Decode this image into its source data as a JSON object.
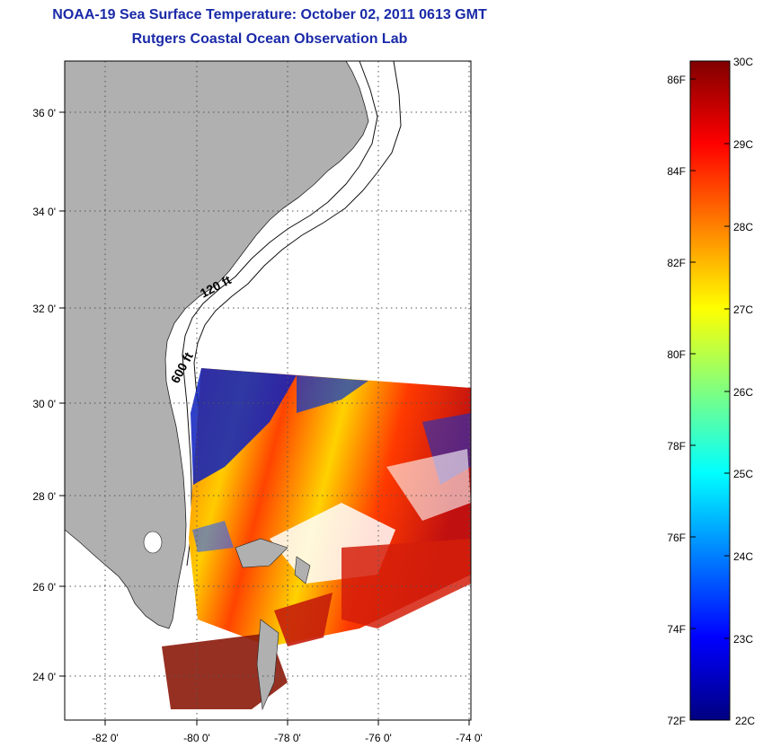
{
  "header": {
    "title": "NOAA-19 Sea Surface Temperature:  October 02, 2011 0613 GMT",
    "subtitle": "Rutgers Coastal Ocean Observation Lab"
  },
  "map": {
    "lat_ticks": [
      "36 0'",
      "34 0'",
      "32 0'",
      "30 0'",
      "28 0'",
      "26 0'",
      "24 0'"
    ],
    "lon_ticks": [
      "-82 0'",
      "-80 0'",
      "-78 0'",
      "-76 0'",
      "-74 0'"
    ],
    "contour_labels": [
      "120 ft",
      "600 ft"
    ],
    "colors": {
      "land": "#b0b0b0",
      "ocean_nodata": "#ffffff",
      "grid": "#555555"
    }
  },
  "colorbar": {
    "f_labels": [
      "86F",
      "84F",
      "82F",
      "80F",
      "78F",
      "76F",
      "74F",
      "72F"
    ],
    "c_labels": [
      "30C",
      "29C",
      "28C",
      "27C",
      "26C",
      "25C",
      "24C",
      "23C",
      "22C"
    ],
    "range_c": [
      22,
      30
    ],
    "colors": [
      "#000080",
      "#0000ff",
      "#0080ff",
      "#00ffff",
      "#80ff80",
      "#ffff00",
      "#ff8000",
      "#ff0000",
      "#800000"
    ]
  }
}
